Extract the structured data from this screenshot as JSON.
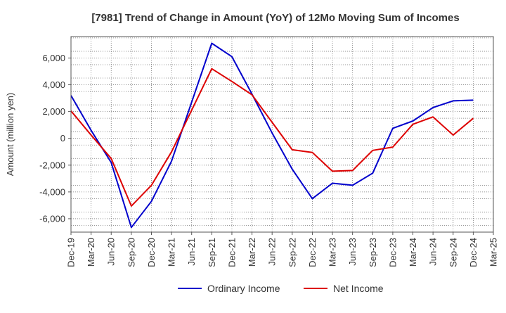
{
  "chart_data": {
    "type": "line",
    "title": "[7981]  Trend of Change in Amount (YoY) of 12Mo Moving Sum of Incomes",
    "xlabel": "",
    "ylabel": "Amount (million yen)",
    "ylim": [
      -7000,
      7600
    ],
    "yticks": [
      6000,
      4000,
      2000,
      0,
      -2000,
      -4000,
      -6000
    ],
    "ytick_labels": [
      "6,000",
      "4,000",
      "2,000",
      "0",
      "-2,000",
      "-4,000",
      "-6,000"
    ],
    "categories": [
      "Dec-19",
      "Mar-20",
      "Jun-20",
      "Sep-20",
      "Dec-20",
      "Mar-21",
      "Jun-21",
      "Sep-21",
      "Dec-21",
      "Mar-22",
      "Jun-22",
      "Sep-22",
      "Dec-22",
      "Mar-23",
      "Jun-23",
      "Sep-23",
      "Dec-23",
      "Mar-24",
      "Jun-24",
      "Sep-24",
      "Dec-24",
      "Mar-25"
    ],
    "grid": true,
    "legend_position": "bottom",
    "series": [
      {
        "name": "Ordinary Income",
        "color": "#0000cc",
        "values": [
          3200,
          600,
          -1800,
          -6650,
          -4700,
          -1700,
          2700,
          7100,
          6100,
          3300,
          400,
          -2300,
          -4500,
          -3350,
          -3500,
          -2600,
          750,
          1300,
          2300,
          2800,
          2850,
          null
        ]
      },
      {
        "name": "Net Income",
        "color": "#dd0000",
        "values": [
          2050,
          250,
          -1500,
          -5050,
          -3500,
          -1000,
          2100,
          5200,
          4250,
          3250,
          1200,
          -850,
          -1050,
          -2450,
          -2400,
          -900,
          -650,
          1050,
          1600,
          250,
          1500,
          null
        ]
      }
    ]
  }
}
